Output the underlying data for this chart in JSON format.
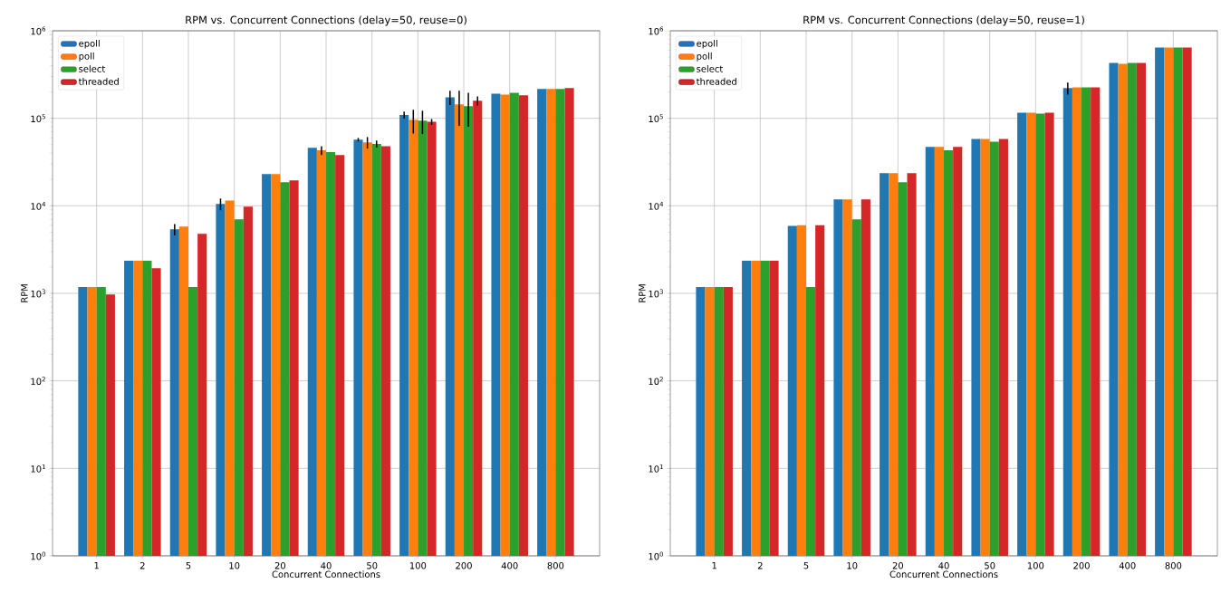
{
  "chart_data": [
    {
      "type": "bar",
      "title": "RPM vs. Concurrent Connections (delay=50, reuse=0)",
      "xlabel": "Concurrent Connections",
      "ylabel": "RPM",
      "log": "y",
      "grid": true,
      "legend": "top left",
      "categories": [
        "1",
        "2",
        "5",
        "10",
        "20",
        "40",
        "50",
        "100",
        "200",
        "400",
        "800"
      ],
      "ylim": [
        1,
        1000000
      ],
      "yticks": [
        {
          "value": 1,
          "label": "10$^{0}$"
        },
        {
          "value": 10,
          "label": "10$^{1}$"
        },
        {
          "value": 100,
          "label": "10$^{2}$"
        },
        {
          "value": 1000,
          "label": "10$^{3}$"
        },
        {
          "value": 10000,
          "label": "10$^{4}$"
        },
        {
          "value": 100000,
          "label": "10$^{5}$"
        },
        {
          "value": 1000000,
          "label": "10$^{6}$"
        }
      ],
      "series": [
        {
          "name": "epoll",
          "color": "#1f77b4",
          "values": [
            1180,
            2350,
            5400,
            10500,
            23000,
            46000,
            57000,
            109000,
            174000,
            191000,
            216000
          ],
          "errors": [
            null,
            null,
            800,
            1600,
            null,
            null,
            2600,
            10000,
            32000,
            null,
            null
          ]
        },
        {
          "name": "poll",
          "color": "#ff7f0e",
          "values": [
            1180,
            2350,
            5800,
            11500,
            23000,
            43000,
            53000,
            96000,
            144000,
            187000,
            216000
          ],
          "errors": [
            null,
            null,
            null,
            null,
            null,
            5000,
            8000,
            29000,
            62000,
            null,
            null
          ]
        },
        {
          "name": "select",
          "color": "#2ca02c",
          "values": [
            1180,
            2350,
            1180,
            7000,
            18600,
            41000,
            51000,
            94000,
            138000,
            196000,
            216000
          ],
          "errors": [
            null,
            null,
            null,
            null,
            null,
            null,
            4600,
            28000,
            58000,
            null,
            null
          ]
        },
        {
          "name": "threaded",
          "color": "#d62728",
          "values": [
            970,
            1940,
            4800,
            9800,
            19500,
            38000,
            48000,
            91000,
            159000,
            183000,
            221000
          ],
          "errors": [
            null,
            null,
            null,
            null,
            null,
            null,
            null,
            7000,
            19000,
            null,
            null
          ]
        }
      ]
    },
    {
      "type": "bar",
      "title": "RPM vs. Concurrent Connections (delay=50, reuse=1)",
      "xlabel": "Concurrent Connections",
      "ylabel": "RPM",
      "log": "y",
      "grid": true,
      "legend": "top left",
      "categories": [
        "1",
        "2",
        "5",
        "10",
        "20",
        "40",
        "50",
        "100",
        "200",
        "400",
        "800"
      ],
      "ylim": [
        1,
        1000000
      ],
      "yticks": [
        {
          "value": 1,
          "label": "10$^{0}$"
        },
        {
          "value": 10,
          "label": "10$^{1}$"
        },
        {
          "value": 100,
          "label": "10$^{2}$"
        },
        {
          "value": 1000,
          "label": "10$^{3}$"
        },
        {
          "value": 10000,
          "label": "10$^{4}$"
        },
        {
          "value": 100000,
          "label": "10$^{5}$"
        },
        {
          "value": 1000000,
          "label": "10$^{6}$"
        }
      ],
      "series": [
        {
          "name": "epoll",
          "color": "#1f77b4",
          "values": [
            1180,
            2350,
            5900,
            11800,
            23600,
            47000,
            58000,
            116000,
            221000,
            430000,
            645000
          ],
          "errors": [
            null,
            null,
            null,
            null,
            null,
            null,
            null,
            null,
            34000,
            null,
            null
          ]
        },
        {
          "name": "poll",
          "color": "#ff7f0e",
          "values": [
            1180,
            2350,
            6000,
            11800,
            23600,
            47000,
            58000,
            116000,
            226000,
            420000,
            645000
          ]
        },
        {
          "name": "select",
          "color": "#2ca02c",
          "values": [
            1180,
            2350,
            1180,
            7000,
            18600,
            43000,
            54000,
            113000,
            226000,
            430000,
            645000
          ]
        },
        {
          "name": "threaded",
          "color": "#d62728",
          "values": [
            1180,
            2350,
            6000,
            11800,
            23600,
            47000,
            58000,
            116000,
            226000,
            430000,
            645000
          ]
        }
      ]
    }
  ]
}
